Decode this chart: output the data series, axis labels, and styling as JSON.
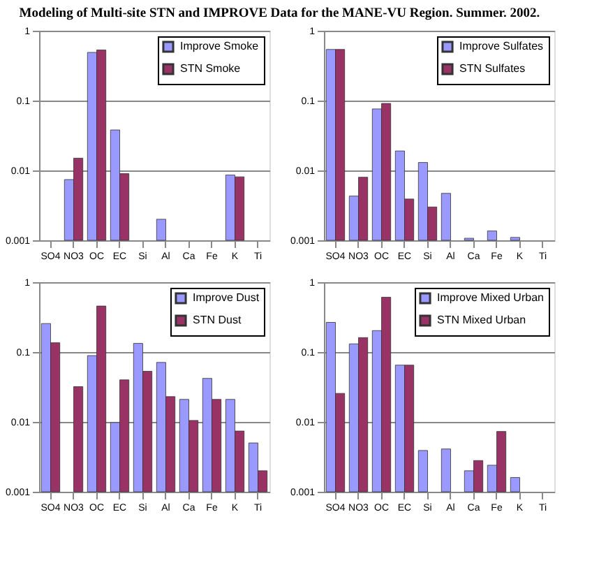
{
  "chart_data": [
    {
      "type": "bar",
      "title": "Modeling of Multi-site STN and IMPROVE Data for the MANE-VU Region. Summer. 2002.",
      "categories": [
        "SO4",
        "NO3",
        "OC",
        "EC",
        "Si",
        "Al",
        "Ca",
        "Fe",
        "K",
        "Ti"
      ],
      "log": true,
      "ylim": [
        0.001,
        1
      ],
      "yticks": [
        0.001,
        0.01,
        0.1,
        1
      ],
      "grid": "y",
      "legend": "top right",
      "series": [
        {
          "name": "Improve Smoke",
          "color": "#9999ff",
          "values": [
            null,
            0.0074,
            0.49,
            0.038,
            null,
            0.002,
            null,
            null,
            0.0086,
            null
          ]
        },
        {
          "name": "STN Smoke",
          "color": "#993366",
          "values": [
            null,
            0.015,
            0.53,
            0.009,
            null,
            null,
            null,
            null,
            0.0081,
            null
          ]
        }
      ]
    },
    {
      "type": "bar",
      "categories": [
        "SO4",
        "NO3",
        "OC",
        "EC",
        "Si",
        "Al",
        "Ca",
        "Fe",
        "K",
        "Ti"
      ],
      "log": true,
      "ylim": [
        0.001,
        1
      ],
      "yticks": [
        0.001,
        0.01,
        0.1,
        1
      ],
      "grid": "y",
      "legend": "top right",
      "series": [
        {
          "name": "Improve Sulfates",
          "color": "#9999ff",
          "values": [
            0.54,
            0.0043,
            0.076,
            0.019,
            0.013,
            0.0047,
            0.00107,
            0.00136,
            0.0011,
            null
          ]
        },
        {
          "name": "STN Sulfates",
          "color": "#993366",
          "values": [
            0.54,
            0.008,
            0.091,
            0.0039,
            0.003,
            null,
            null,
            null,
            null,
            null
          ]
        }
      ]
    },
    {
      "type": "bar",
      "categories": [
        "SO4",
        "NO3",
        "OC",
        "EC",
        "Si",
        "Al",
        "Ca",
        "Fe",
        "K",
        "Ti"
      ],
      "log": true,
      "ylim": [
        0.001,
        1
      ],
      "yticks": [
        0.001,
        0.01,
        0.1,
        1
      ],
      "grid": "y",
      "legend": "top right",
      "series": [
        {
          "name": "Improve Dust",
          "color": "#9999ff",
          "values": [
            0.256,
            null,
            0.089,
            0.0098,
            0.133,
            0.071,
            0.021,
            0.042,
            0.021,
            0.005
          ]
        },
        {
          "name": "STN Dust",
          "color": "#993366",
          "values": [
            0.136,
            0.032,
            0.456,
            0.04,
            0.053,
            0.023,
            0.0105,
            0.021,
            0.0074,
            0.002
          ]
        }
      ]
    },
    {
      "type": "bar",
      "categories": [
        "SO4",
        "NO3",
        "OC",
        "EC",
        "Si",
        "Al",
        "Ca",
        "Fe",
        "K",
        "Ti"
      ],
      "log": true,
      "ylim": [
        0.001,
        1
      ],
      "yticks": [
        0.001,
        0.01,
        0.1,
        1
      ],
      "grid": "y",
      "legend": "top right",
      "series": [
        {
          "name": "Improve Mixed Urban",
          "color": "#9999ff",
          "values": [
            0.266,
            0.131,
            0.203,
            0.065,
            0.0039,
            0.0041,
            0.002,
            0.0024,
            0.0016,
            null
          ]
        },
        {
          "name": "STN Mixed Urban",
          "color": "#993366",
          "values": [
            0.0256,
            0.161,
            0.61,
            0.065,
            null,
            null,
            0.0028,
            0.0073,
            null,
            null
          ]
        }
      ]
    }
  ]
}
